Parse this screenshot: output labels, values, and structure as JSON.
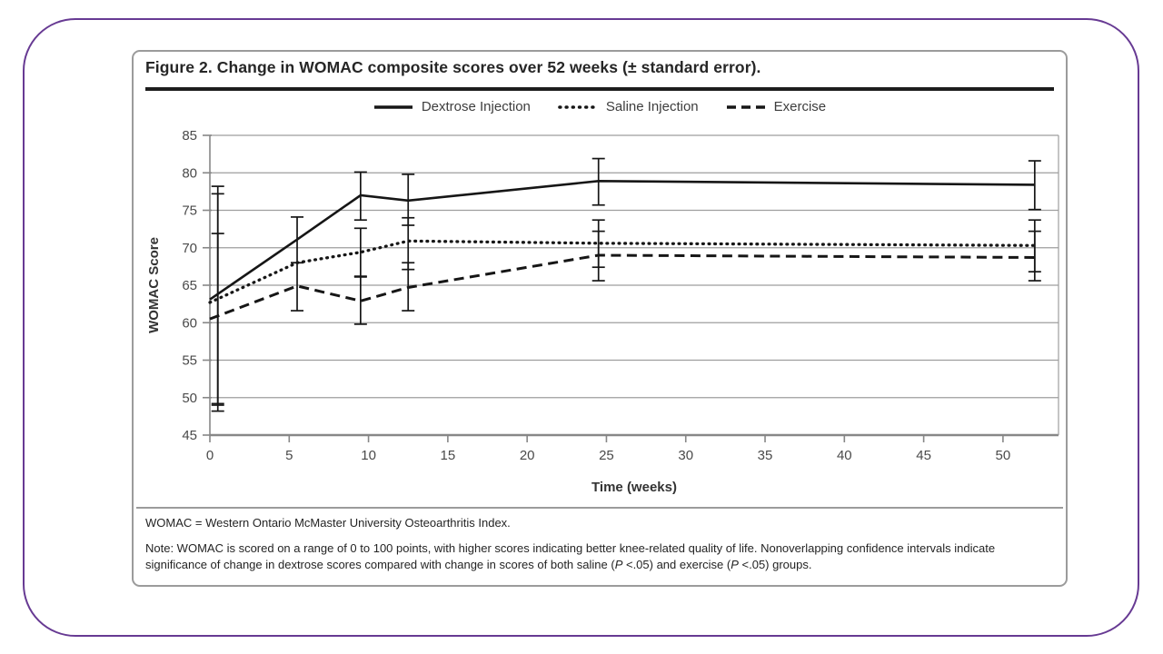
{
  "colors": {
    "frame_purple": "#673a93",
    "series_black": "#161616",
    "grid_gray": "#9e9e9e",
    "axis_gray": "#878787",
    "tick_label_gray": "#4a4a4a"
  },
  "figure": {
    "title": "Figure 2. Change in WOMAC composite scores over 52 weeks (± standard error).",
    "footnote_abbreviation": "WOMAC = Western Ontario McMaster University Osteoarthritis Index.",
    "note_segments": [
      {
        "text": "Note: WOMAC is scored on a range of 0 to 100 points, with higher scores indicating better knee-related quality of life. Nonoverlapping confidence intervals indicate significance of change in dextrose scores compared with change in scores of both saline (",
        "italic": false
      },
      {
        "text": "P",
        "italic": true
      },
      {
        "text": " <.05) and exercise (",
        "italic": false
      },
      {
        "text": "P",
        "italic": true
      },
      {
        "text": " <.05) groups.",
        "italic": false
      }
    ]
  },
  "chart_data": {
    "type": "line",
    "title": "Figure 2. Change in WOMAC composite scores over 52 weeks (± standard error).",
    "xlabel": "Time (weeks)",
    "ylabel": "WOMAC Score",
    "xlim": [
      0,
      53.5
    ],
    "ylim": [
      45,
      85
    ],
    "x_ticks": [
      0,
      5,
      10,
      15,
      20,
      25,
      30,
      35,
      40,
      45,
      50
    ],
    "y_ticks": [
      45,
      50,
      55,
      60,
      65,
      70,
      75,
      80,
      85
    ],
    "grid": "horizontal",
    "legend_position": "top",
    "x": [
      0,
      5.5,
      9.5,
      12.5,
      24.5,
      52
    ],
    "error_bar_x": [
      0.5,
      5.5,
      9.5,
      12.5,
      24.5,
      52
    ],
    "series": [
      {
        "name": "Dextrose Injection",
        "dash": "solid",
        "values": [
          63.1,
          71.1,
          77.0,
          76.3,
          78.9,
          78.4
        ],
        "err_low": [
          49.0,
          68.0,
          73.7,
          73.0,
          75.7,
          75.1
        ],
        "err_high": [
          77.2,
          74.1,
          80.1,
          79.8,
          81.9,
          81.6
        ]
      },
      {
        "name": "Saline Injection",
        "dash": "dotted",
        "values": [
          62.7,
          68.0,
          69.4,
          70.9,
          70.6,
          70.3
        ],
        "err_low": [
          48.2,
          null,
          66.2,
          67.1,
          67.4,
          66.8
        ],
        "err_high": [
          78.2,
          null,
          72.6,
          74.0,
          73.7,
          73.7
        ]
      },
      {
        "name": "Exercise",
        "dash": "dashed",
        "values": [
          60.5,
          64.9,
          62.9,
          64.7,
          69.0,
          68.7
        ],
        "err_low": [
          49.2,
          61.6,
          59.8,
          61.6,
          65.6,
          65.6
        ],
        "err_high": [
          71.9,
          68.0,
          66.1,
          68.0,
          72.2,
          72.2
        ]
      }
    ]
  }
}
